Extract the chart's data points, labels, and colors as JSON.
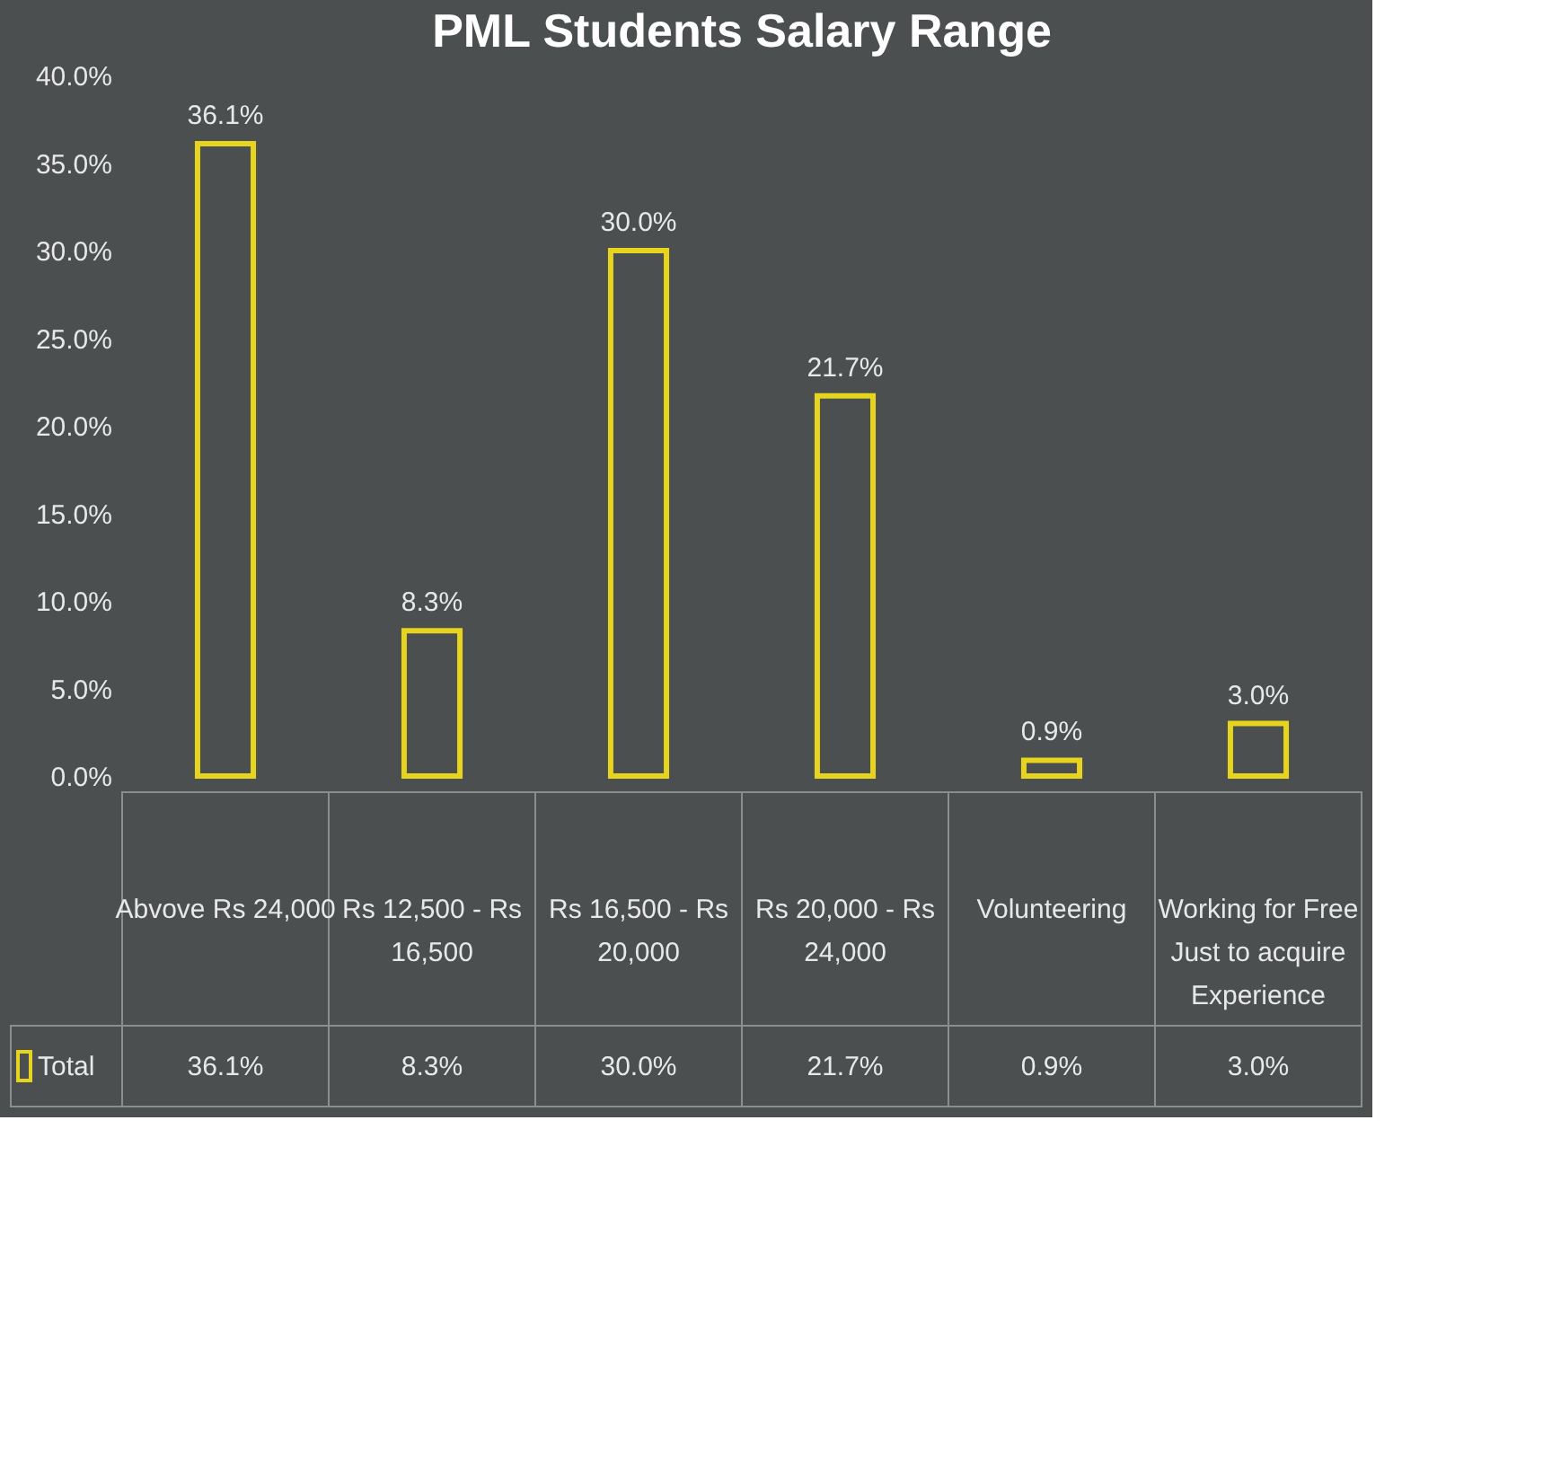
{
  "chart_data": {
    "type": "bar",
    "title": "PML Students Salary Range",
    "categories": [
      "Abvove Rs 24,000",
      "Rs 12,500 - Rs 16,500",
      "Rs 16,500 - Rs 20,000",
      "Rs 20,000 - Rs 24,000",
      "Volunteering",
      "Working for Free Just to acquire Experience"
    ],
    "series": [
      {
        "name": "Total",
        "color": "#e6d41e",
        "values": [
          36.1,
          8.3,
          30.0,
          21.7,
          0.9,
          3.0
        ],
        "value_labels": [
          "36.1%",
          "8.3%",
          "30.0%",
          "21.7%",
          "0.9%",
          "3.0%"
        ]
      }
    ],
    "ylim": [
      0,
      40
    ],
    "yticks": [
      {
        "value": 0,
        "label": "0.0%"
      },
      {
        "value": 5,
        "label": "5.0%"
      },
      {
        "value": 10,
        "label": "10.0%"
      },
      {
        "value": 15,
        "label": "15.0%"
      },
      {
        "value": 20,
        "label": "20.0%"
      },
      {
        "value": 25,
        "label": "25.0%"
      },
      {
        "value": 30,
        "label": "30.0%"
      },
      {
        "value": 35,
        "label": "35.0%"
      },
      {
        "value": 40,
        "label": "40.0%"
      }
    ],
    "legend": "bottom left"
  }
}
